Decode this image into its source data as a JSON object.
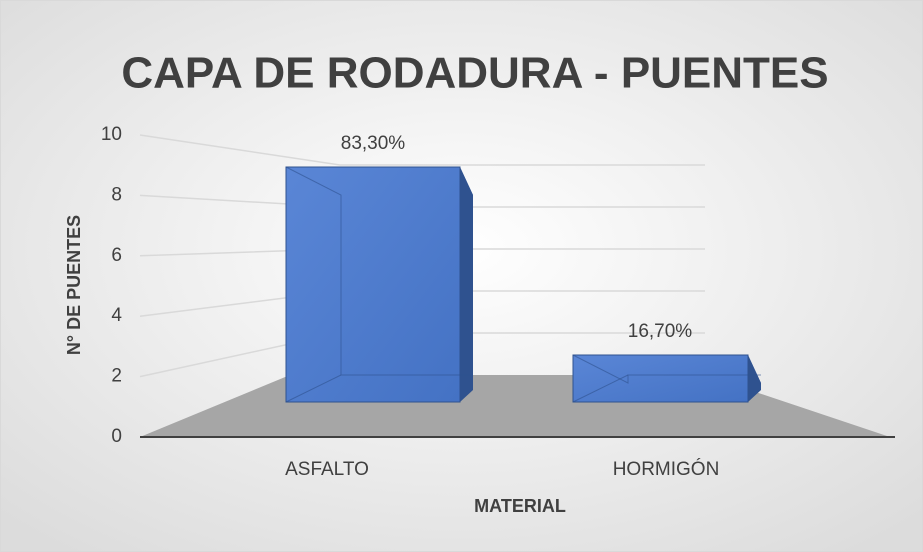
{
  "chart_data": {
    "type": "bar3d",
    "title": "CAPA DE RODADURA - PUENTES",
    "categories": [
      "ASFALTO",
      "HORMIGÓN"
    ],
    "values": [
      10,
      2
    ],
    "color": "#4472c4",
    "annotations": [
      "83,30%",
      "16,70%"
    ],
    "x_label": "MATERIAL",
    "y_label": "N° DE PUENTES",
    "ylim": [
      0,
      10
    ],
    "yticks": [
      0,
      2,
      4,
      6,
      8,
      10
    ],
    "grid": true
  }
}
